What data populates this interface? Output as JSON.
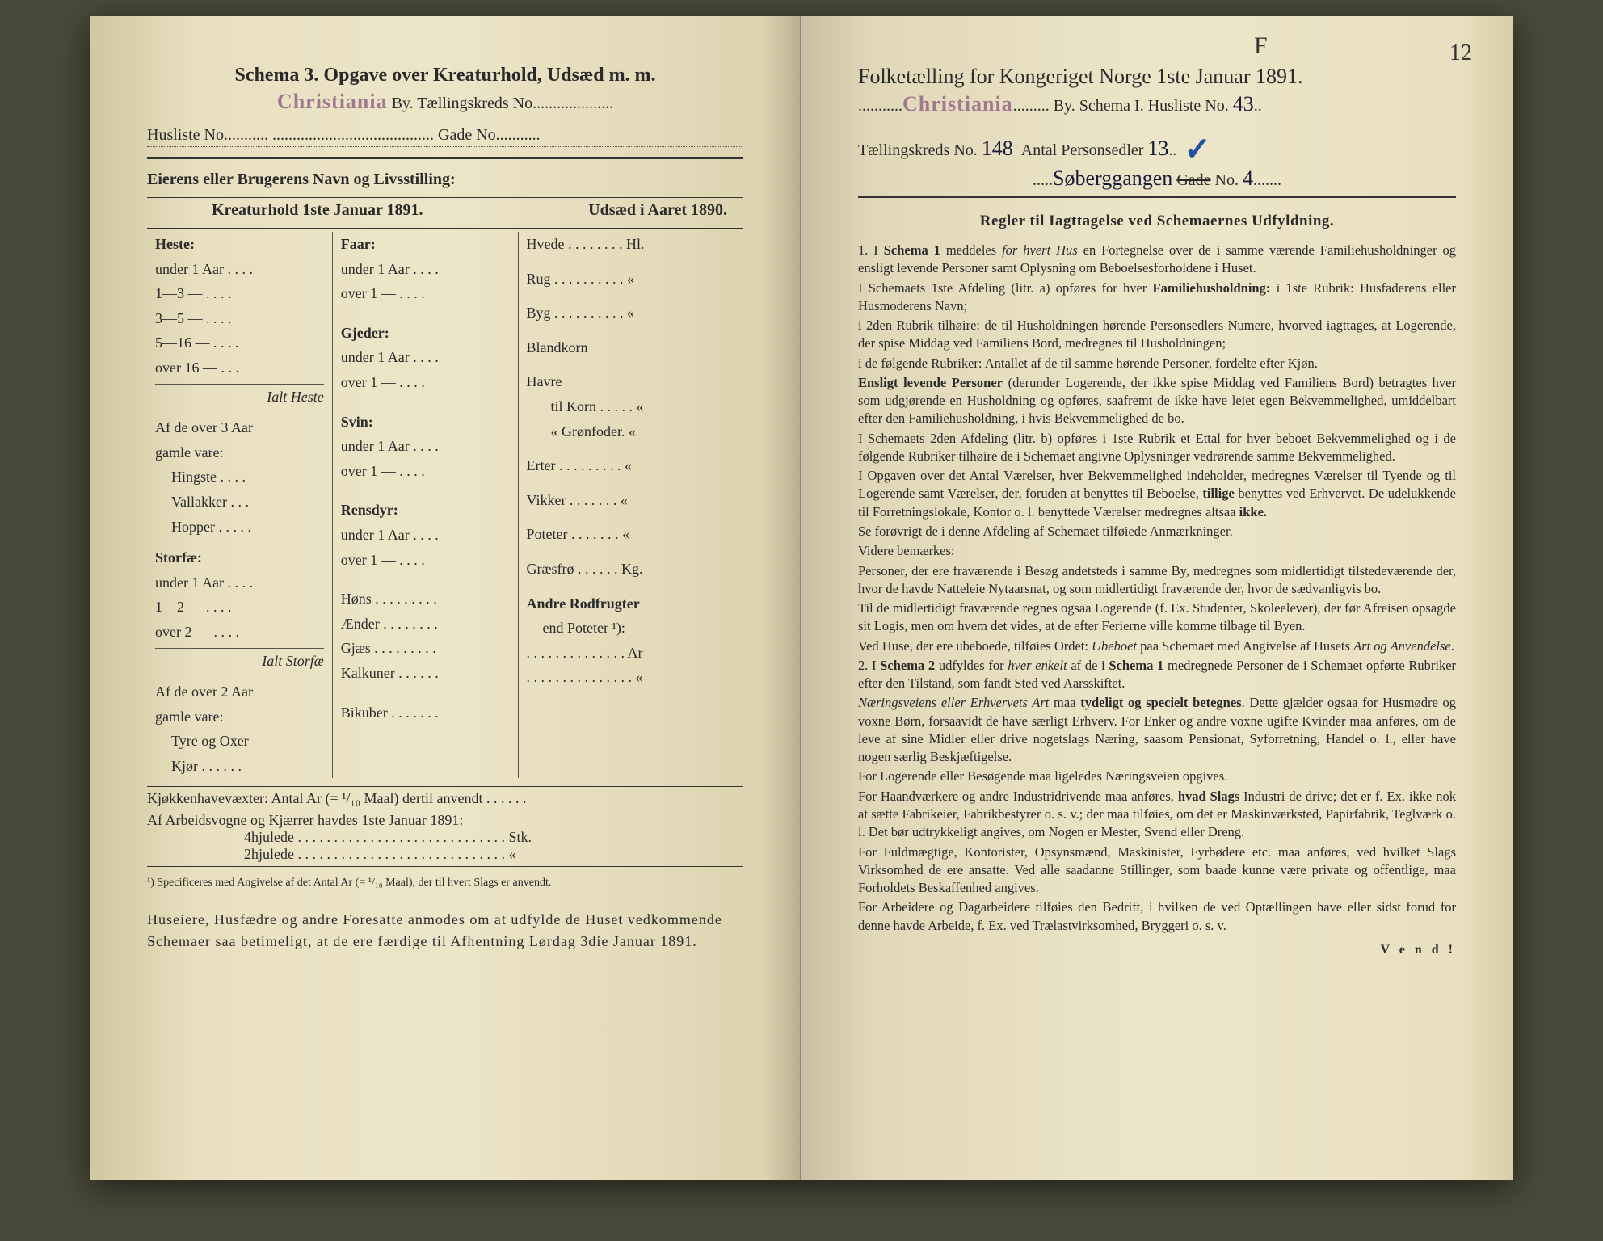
{
  "left": {
    "schema_title": "Schema 3.  Opgave over Kreaturhold, Udsæd m. m.",
    "city_stamp": "Christiania",
    "by_label": "By.   Tællingskreds No",
    "husliste_label": "Husliste No",
    "gade_label": "Gade No",
    "eier_label": "Eierens eller Brugerens Navn og Livsstilling:",
    "hdr_left": "Kreaturhold 1ste Januar 1891.",
    "hdr_right": "Udsæd i Aaret 1890.",
    "col1": {
      "heste": "Heste:",
      "heste_rows": [
        "under 1 Aar . . . .",
        "1—3   —   . . . .",
        "3—5   —   . . . .",
        "5—16 —   . . . .",
        "over 16 —   . . ."
      ],
      "ialt_heste": "Ialt Heste",
      "af_over3": "Af de over 3 Aar",
      "gamle": "gamle vare:",
      "hingste": "Hingste . . . .",
      "vallakker": "Vallakker . . .",
      "hopper": "Hopper . . . . .",
      "storfae": "Storfæ:",
      "stor_rows": [
        "under 1 Aar . . . .",
        "1—2   —   . . . .",
        "over 2   —   . . . ."
      ],
      "ialt_stor": "Ialt Storfæ",
      "af_over2": "Af de over 2 Aar",
      "gamle2": "gamle vare:",
      "tyre": "Tyre og Oxer",
      "kjor": "Kjør . . . . . ."
    },
    "col2": {
      "faar": "Faar:",
      "faar_rows": [
        "under 1 Aar . . . .",
        "over 1   —   . . . ."
      ],
      "gjeder": "Gjeder:",
      "gjed_rows": [
        "under 1 Aar . . . .",
        "over 1   —   . . . ."
      ],
      "svin": "Svin:",
      "svin_rows": [
        "under 1 Aar . . . .",
        "over 1   —   . . . ."
      ],
      "rensdyr": "Rensdyr:",
      "rens_rows": [
        "under 1 Aar . . . .",
        "over 1   —   . . . ."
      ],
      "hons": "Høns . . . . . . . . .",
      "aender": "Ænder . . . . . . . .",
      "gjaes": "Gjæs . . . . . . . . .",
      "kalkuner": "Kalkuner . . . . . .",
      "bikuber": "Bikuber . . . . . . ."
    },
    "col3": {
      "hvede": "Hvede . . . . . . . . Hl.",
      "rug": "Rug . . . . . . . . . .   «",
      "byg": "Byg . . . . . . . . . .   «",
      "blandkorn": "Blandkorn",
      "havre": "Havre",
      "tilkorn": "til Korn . . . . .   «",
      "gronfoder": "«  Grønfoder.   «",
      "erter": "Erter . . . . . . . . .   «",
      "vikker": "Vikker . . . . . . .   «",
      "poteter": "Poteter . . . . . . .   «",
      "graesfro": "Græsfrø . . . . . . Kg.",
      "andre": "Andre Rodfrugter",
      "endpot": "end Poteter ¹):",
      "ar": ". . . . . . . . . . . . . . Ar",
      "dots": ". . . . . . . . . . . . . . .  «"
    },
    "kjokken": "Kjøkkenhavevæxter:  Antal Ar (= ¹/₁₀ Maal) dertil anvendt . . . . . .",
    "arbeids": "Af Arbeidsvogne og Kjærrer havdes 1ste Januar 1891:",
    "fourhj": "4hjulede . . . . . . . . . . . . . . . . . . . . . . . . . . . . . Stk.",
    "twohj": "2hjulede . . . . . . . . . . . . . . . . . . . . . . . . . . . . .   «",
    "footnote": "¹) Specificeres med Angivelse af det Antal Ar (= ¹/₁₀ Maal), der til hvert Slags er anvendt.",
    "bottom": "Huseiere, Husfædre og andre Foresatte anmodes om at udfylde de Huset vedkommende Schemaer saa betimeligt, at de ere færdige til Afhentning Lørdag 3die Januar 1891."
  },
  "right": {
    "page_f": "F",
    "page_num": "12",
    "title": "Folketælling for Kongeriget Norge 1ste Januar 1891.",
    "city_stamp": "Christiania",
    "by_label": "By.   Schema I.   Husliste No.",
    "husliste_no": "43",
    "taelling_label": "Tællingskreds No.",
    "taelling_no": "148",
    "antal_label": "Antal Personsedler",
    "antal_no": "13",
    "gade_name": "Søberggangen",
    "gade_label": "Gade",
    "gade_no_label": "No.",
    "gade_no": "4",
    "regler_title": "Regler til Iagttagelse ved Schemaernes Udfyldning.",
    "body": "1. I Schema 1 meddeles for hvert Hus en Fortegnelse over de i samme værende Familiehusholdninger og ensligt levende Personer samt Oplysning om Beboelsesforholdene i Huset.\n   I Schemaets 1ste Afdeling (litr. a) opføres for hver Familiehusholdning: i 1ste Rubrik: Husfaderens eller Husmoderens Navn;\ni 2den Rubrik tilhøire: de til Husholdningen hørende Personsedlers Numere, hvorved iagttages, at Logerende, der spise Middag ved Familiens Bord, medregnes til Husholdningen;\ni de følgende Rubriker: Antallet af de til samme hørende Personer, fordelte efter Kjøn.\n   Ensligt levende Personer (derunder Logerende, der ikke spise Middag ved Familiens Bord) betragtes hver som udgjørende en Husholdning og opføres, saafremt de ikke have leiet egen Bekvemmelighed, umiddelbart efter den Familiehusholdning, i hvis Bekvemmelighed de bo.\n   I Schemaets 2den Afdeling (litr. b) opføres i 1ste Rubrik et Ettal for hver beboet Bekvemmelighed og i de følgende Rubriker tilhøire de i Schemaet angivne Oplysninger vedrørende samme Bekvemmelighed.\n   I Opgaven over det Antal Værelser, hver Bekvemmelighed indeholder, medregnes Værelser til Tyende og til Logerende samt Værelser, der, foruden at benyttes til Beboelse, tillige benyttes ved Erhvervet. De udelukkende til Forretningslokale, Kontor o. l. benyttede Værelser medregnes altsaa ikke.\n   Se forøvrigt de i denne Afdeling af Schemaet tilføiede Anmærkninger.\n   Videre bemærkes:\n   Personer, der ere fraværende i Besøg andetsteds i samme By, medregnes som midlertidigt tilstedeværende der, hvor de havde Natteleie Nytaarsnat, og som midlertidigt fraværende der, hvor de sædvanligvis bo.\n   Til de midlertidigt fraværende regnes ogsaa Logerende (f. Ex. Studenter, Skoleelever), der før Afreisen opsagde sit Logis, men om hvem det vides, at de efter Ferierne ville komme tilbage til Byen.\n   Ved Huse, der ere ubeboede, tilføies Ordet: Ubeboet paa Schemaet med Angivelse af Husets Art og Anvendelse.\n2. I Schema 2 udfyldes for hver enkelt af de i Schema 1 medregnede Personer de i Schemaet opførte Rubriker efter den Tilstand, som fandt Sted ved Aarsskiftet.\n   Næringsveiens eller Erhvervets Art maa tydeligt og specielt betegnes. Dette gjælder ogsaa for Husmødre og voxne Børn, forsaavidt de have særligt Erhverv. For Enker og andre voxne ugifte Kvinder maa anføres, om de leve af sine Midler eller drive nogetslags Næring, saasom Pensionat, Syforretning, Handel o. l., eller have nogen særlig Beskjæftigelse.\n   For Logerende eller Besøgende maa ligeledes Næringsveien opgives.\n   For Haandværkere og andre Industridrivende maa anføres, hvad Slags Industri de drive; det er f. Ex. ikke nok at sætte Fabrikeier, Fabrikbestyrer o. s. v.; der maa tilføies, om det er Maskinværksted, Papirfabrik, Teglværk o. l. Det bør udtrykkeligt angives, om Nogen er Mester, Svend eller Dreng.\n   For Fuldmægtige, Kontorister, Opsynsmænd, Maskinister, Fyrbødere etc. maa anføres, ved hvilket Slags Virksomhed de ere ansatte. Ved alle saadanne Stillinger, som baade kunne være private og offentlige, maa Forholdets Beskaffenhed angives.\n   For Arbeidere og Dagarbeidere tilføies den Bedrift, i hvilken de ved Optællingen have eller sidst forud for denne havde Arbeide, f. Ex. ved Trælastvirksomhed, Bryggeri o. s. v.",
    "vend": "V e n d !"
  }
}
